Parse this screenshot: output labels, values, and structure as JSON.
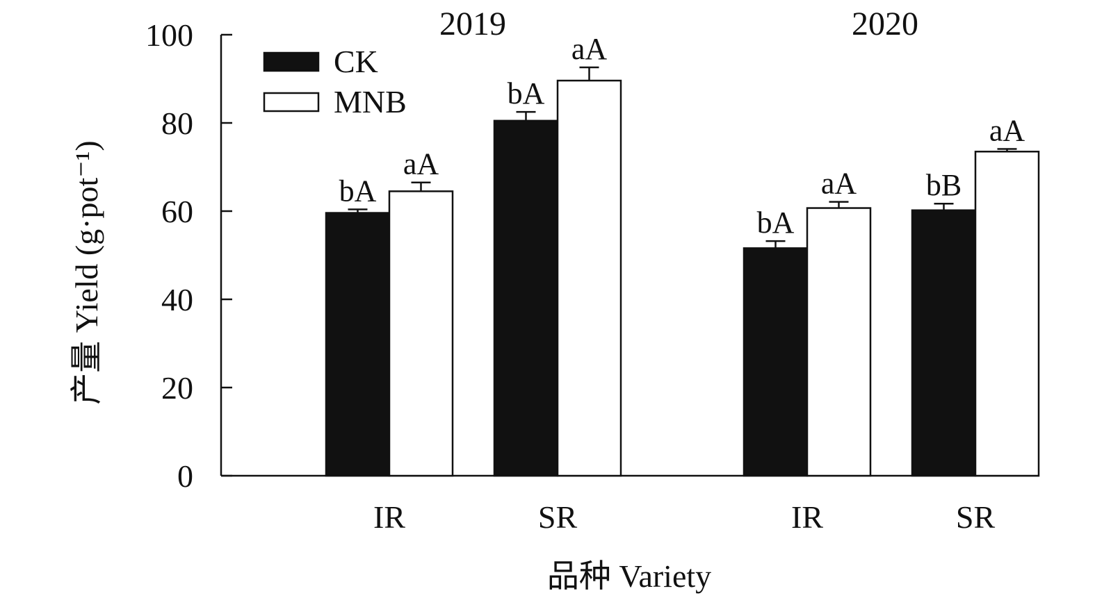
{
  "chart_data": {
    "type": "bar",
    "title": "",
    "ylabel": "产量 Yield (g·pot⁻¹)",
    "xlabel": "品种 Variety",
    "ylim": [
      0,
      100
    ],
    "yticks": [
      0,
      20,
      40,
      60,
      80,
      100
    ],
    "legend_position": "top-left",
    "groups": [
      {
        "year": "2019",
        "categories": [
          "IR",
          "SR"
        ]
      },
      {
        "year": "2020",
        "categories": [
          "IR",
          "SR"
        ]
      }
    ],
    "series": [
      {
        "name": "CK",
        "color": "#111111",
        "values": [
          59.6,
          80.5,
          51.6,
          60.2
        ],
        "errors": [
          0.8,
          2.0,
          1.6,
          1.5
        ],
        "labels": [
          "bA",
          "bA",
          "bA",
          "bB"
        ]
      },
      {
        "name": "MNB",
        "color": "#ffffff",
        "values": [
          64.5,
          89.6,
          60.7,
          73.5
        ],
        "errors": [
          2.0,
          3.0,
          1.4,
          0.6
        ],
        "labels": [
          "aA",
          "aA",
          "aA",
          "aA"
        ]
      }
    ]
  }
}
